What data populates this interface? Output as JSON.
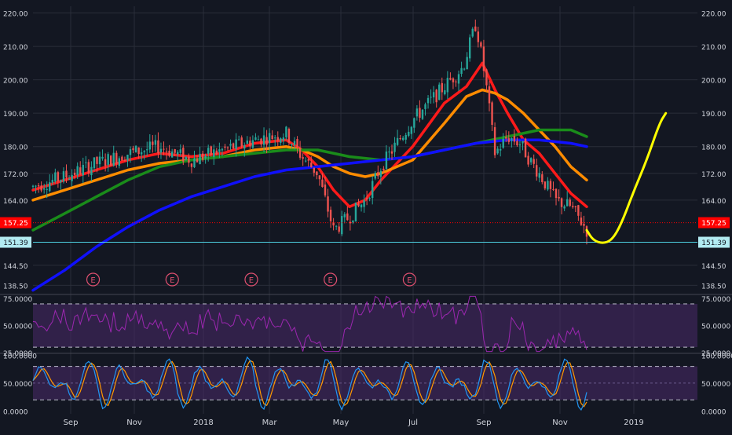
{
  "colors": {
    "background": "#131722",
    "grid": "#2a2e39",
    "candle_up": "#26a69a",
    "candle_down": "#ef5350",
    "ma_fast": "#ff1a1a",
    "ma_medium": "#ff8c00",
    "ma_slow": "#1a8c1a",
    "ma_long": "#1010ff",
    "projection": "#ffff00",
    "rsi_line": "#9c27b0",
    "stoch_k": "#2196f3",
    "stoch_d": "#ff9800",
    "band_fill": "#4a2a6a",
    "current_price_badge": "#ff0000",
    "support_line": "#4dd0e1"
  },
  "chart_data": [
    {
      "type": "candlestick",
      "panel": "price",
      "x_tick_labels": [
        "Sep",
        "Nov",
        "2018",
        "Mar",
        "May",
        "Jul",
        "Sep",
        "Nov",
        "2019"
      ],
      "y_tick_labels": [
        "220.00",
        "210.00",
        "200.00",
        "190.00",
        "180.00",
        "172.00",
        "164.00",
        "144.50",
        "138.50"
      ],
      "ylim": [
        136,
        222
      ],
      "current_price": 157.25,
      "current_price_label": "157.25",
      "support_level": 151.39,
      "support_label": "151.39",
      "earnings_marker": "E",
      "earnings_months": [
        1.9,
        4.4,
        6.9,
        9.4,
        11.9
      ],
      "anchors_month_price": [
        [
          0,
          168
        ],
        [
          1,
          171
        ],
        [
          2,
          175
        ],
        [
          3,
          178
        ],
        [
          4,
          180
        ],
        [
          5,
          176
        ],
        [
          6,
          179
        ],
        [
          7,
          182
        ],
        [
          8,
          184
        ],
        [
          8.5,
          177
        ],
        [
          9,
          172
        ],
        [
          9.5,
          155
        ],
        [
          10,
          159
        ],
        [
          10.5,
          164
        ],
        [
          11,
          174
        ],
        [
          12,
          188
        ],
        [
          13,
          198
        ],
        [
          13.6,
          204
        ],
        [
          14,
          217
        ],
        [
          14.3,
          200
        ],
        [
          14.6,
          178
        ],
        [
          15,
          183
        ],
        [
          15.4,
          181
        ],
        [
          15.7,
          176
        ],
        [
          16,
          172
        ],
        [
          16.5,
          164
        ],
        [
          17,
          162
        ],
        [
          17.3,
          158
        ],
        [
          17.5,
          155
        ]
      ],
      "moving_averages": [
        {
          "name": "MA fast",
          "color_key": "ma_fast",
          "points": [
            [
              0,
              167
            ],
            [
              1,
              170
            ],
            [
              2,
              173
            ],
            [
              3,
              176
            ],
            [
              4,
              178
            ],
            [
              5,
              177
            ],
            [
              6,
              178
            ],
            [
              7,
              181
            ],
            [
              8,
              182
            ],
            [
              8.5,
              179
            ],
            [
              9,
              174
            ],
            [
              9.5,
              167
            ],
            [
              10,
              162
            ],
            [
              10.5,
              164
            ],
            [
              11,
              170
            ],
            [
              12,
              180
            ],
            [
              13,
              193
            ],
            [
              13.7,
              198
            ],
            [
              14.2,
              205
            ],
            [
              14.6,
              197
            ],
            [
              15,
              190
            ],
            [
              15.5,
              182
            ],
            [
              16,
              178
            ],
            [
              16.5,
              172
            ],
            [
              17,
              166
            ],
            [
              17.5,
              162
            ]
          ]
        },
        {
          "name": "MA medium",
          "color_key": "ma_medium",
          "points": [
            [
              0,
              164
            ],
            [
              1,
              167
            ],
            [
              2,
              170
            ],
            [
              3,
              173
            ],
            [
              4,
              175
            ],
            [
              5,
              176
            ],
            [
              6,
              177
            ],
            [
              7,
              179
            ],
            [
              8,
              180
            ],
            [
              8.5,
              179
            ],
            [
              9,
              177
            ],
            [
              9.5,
              174
            ],
            [
              10,
              172
            ],
            [
              10.5,
              171
            ],
            [
              11,
              172
            ],
            [
              12,
              176
            ],
            [
              13,
              187
            ],
            [
              13.7,
              195
            ],
            [
              14.2,
              197
            ],
            [
              14.6,
              196
            ],
            [
              15,
              194
            ],
            [
              15.5,
              190
            ],
            [
              16,
              185
            ],
            [
              16.5,
              180
            ],
            [
              17,
              174
            ],
            [
              17.5,
              170
            ]
          ]
        },
        {
          "name": "MA slow",
          "color_key": "ma_slow",
          "points": [
            [
              0,
              155
            ],
            [
              1,
              160
            ],
            [
              2,
              165
            ],
            [
              3,
              170
            ],
            [
              4,
              174
            ],
            [
              5,
              176
            ],
            [
              6,
              177
            ],
            [
              7,
              178
            ],
            [
              8,
              179
            ],
            [
              9,
              179
            ],
            [
              10,
              177
            ],
            [
              11,
              176
            ],
            [
              12,
              177
            ],
            [
              13,
              179
            ],
            [
              14,
              181
            ],
            [
              15,
              183
            ],
            [
              16,
              185
            ],
            [
              17,
              185
            ],
            [
              17.5,
              183
            ]
          ]
        },
        {
          "name": "MA long",
          "color_key": "ma_long",
          "points": [
            [
              0,
              137
            ],
            [
              1,
              143
            ],
            [
              2,
              150
            ],
            [
              3,
              156
            ],
            [
              4,
              161
            ],
            [
              5,
              165
            ],
            [
              6,
              168
            ],
            [
              7,
              171
            ],
            [
              8,
              173
            ],
            [
              9,
              174
            ],
            [
              10,
              175
            ],
            [
              11,
              176
            ],
            [
              12,
              177
            ],
            [
              13,
              179
            ],
            [
              14,
              181
            ],
            [
              15,
              182
            ],
            [
              16,
              182
            ],
            [
              17,
              181
            ],
            [
              17.5,
              180
            ]
          ]
        }
      ],
      "projection_points": [
        [
          17.5,
          155
        ],
        [
          17.7,
          152
        ],
        [
          18.0,
          151
        ],
        [
          18.3,
          152
        ],
        [
          18.6,
          157
        ],
        [
          19.0,
          167
        ],
        [
          19.4,
          176
        ],
        [
          19.8,
          187
        ],
        [
          20.0,
          190
        ]
      ]
    },
    {
      "type": "line",
      "panel": "rsi",
      "y_tick_labels": [
        "75.0000",
        "50.0000",
        "25.0000"
      ],
      "ylim": [
        25,
        78
      ],
      "upper_band": 70,
      "lower_band": 30,
      "series_color_key": "rsi_line"
    },
    {
      "type": "line",
      "panel": "stochastic",
      "y_tick_labels": [
        "100.0000",
        "50.0000",
        "0.0000"
      ],
      "ylim": [
        -5,
        102
      ],
      "upper_band": 80,
      "lower_band": 20,
      "series_color_keys": [
        "stoch_k",
        "stoch_d"
      ]
    }
  ]
}
